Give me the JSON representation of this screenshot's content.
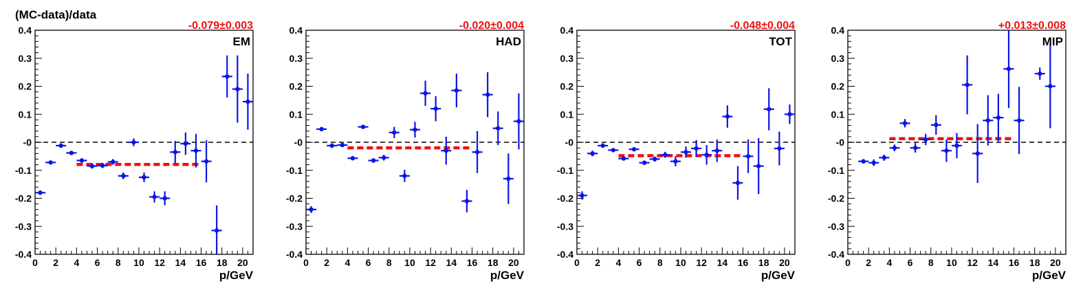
{
  "figure": {
    "ylabel": "(MC-data)/data",
    "xlabel": "p/GeV"
  },
  "colors": {
    "points": "#0a14e6",
    "fit": "#ee1111",
    "zero_line": "#000000",
    "frame": "#000000"
  },
  "chart_data": [
    {
      "type": "scatter",
      "panel_label": "EM",
      "fit_text": "-0.079±0.003",
      "xlim": [
        0,
        21
      ],
      "ylim": [
        -0.4,
        0.4
      ],
      "x_ticks": [
        "0",
        "2",
        "4",
        "6",
        "8",
        "10",
        "12",
        "14",
        "16",
        "18",
        "20"
      ],
      "y_ticks": [
        "0.4",
        "0.3",
        "0.2",
        "0.1",
        "-0",
        "-0.1",
        "-0.2",
        "-0.3",
        "-0.4"
      ],
      "reference_line": {
        "y": 0,
        "style": "dashed"
      },
      "fit": {
        "value": -0.079,
        "x_range": [
          4,
          16
        ],
        "style": "dashed"
      },
      "points": [
        {
          "x": 0.5,
          "y": -0.18,
          "yerr": 0.008
        },
        {
          "x": 1.5,
          "y": -0.072,
          "yerr": 0.006
        },
        {
          "x": 2.5,
          "y": -0.012,
          "yerr": 0.008
        },
        {
          "x": 3.5,
          "y": -0.038,
          "yerr": 0.006
        },
        {
          "x": 4.5,
          "y": -0.065,
          "yerr": 0.008
        },
        {
          "x": 5.5,
          "y": -0.085,
          "yerr": 0.009
        },
        {
          "x": 6.5,
          "y": -0.083,
          "yerr": 0.009
        },
        {
          "x": 7.5,
          "y": -0.07,
          "yerr": 0.01
        },
        {
          "x": 8.5,
          "y": -0.12,
          "yerr": 0.012
        },
        {
          "x": 9.5,
          "y": 0.0,
          "yerr": 0.014
        },
        {
          "x": 10.5,
          "y": -0.125,
          "yerr": 0.017
        },
        {
          "x": 11.5,
          "y": -0.195,
          "yerr": 0.02
        },
        {
          "x": 12.5,
          "y": -0.2,
          "yerr": 0.025
        },
        {
          "x": 13.5,
          "y": -0.035,
          "yerr": 0.04
        },
        {
          "x": 14.5,
          "y": -0.005,
          "yerr": 0.04
        },
        {
          "x": 15.5,
          "y": -0.03,
          "yerr": 0.06
        },
        {
          "x": 16.5,
          "y": -0.068,
          "yerr": 0.075
        },
        {
          "x": 17.5,
          "y": -0.315,
          "yerr": 0.09
        },
        {
          "x": 18.5,
          "y": 0.235,
          "yerr": 0.075
        },
        {
          "x": 19.5,
          "y": 0.19,
          "yerr": 0.12
        },
        {
          "x": 20.5,
          "y": 0.145,
          "yerr": 0.1
        }
      ]
    },
    {
      "type": "scatter",
      "panel_label": "HAD",
      "fit_text": "-0.020±0.004",
      "xlim": [
        0,
        21
      ],
      "ylim": [
        -0.4,
        0.4
      ],
      "x_ticks": [
        "0",
        "2",
        "4",
        "6",
        "8",
        "10",
        "12",
        "14",
        "16",
        "18",
        "20"
      ],
      "y_ticks": [
        "0.4",
        "0.3",
        "0.2",
        "0.1",
        "-0",
        "-0.1",
        "-0.2",
        "-0.3",
        "-0.4"
      ],
      "reference_line": {
        "y": 0,
        "style": "dashed"
      },
      "fit": {
        "value": -0.02,
        "x_range": [
          4,
          16
        ],
        "style": "dashed"
      },
      "points": [
        {
          "x": 0.5,
          "y": -0.24,
          "yerr": 0.012
        },
        {
          "x": 1.5,
          "y": 0.047,
          "yerr": 0.007
        },
        {
          "x": 2.5,
          "y": -0.012,
          "yerr": 0.008
        },
        {
          "x": 3.5,
          "y": -0.01,
          "yerr": 0.006
        },
        {
          "x": 4.5,
          "y": -0.057,
          "yerr": 0.007
        },
        {
          "x": 5.5,
          "y": 0.055,
          "yerr": 0.007
        },
        {
          "x": 6.5,
          "y": -0.065,
          "yerr": 0.008
        },
        {
          "x": 7.5,
          "y": -0.055,
          "yerr": 0.01
        },
        {
          "x": 8.5,
          "y": 0.035,
          "yerr": 0.02
        },
        {
          "x": 9.5,
          "y": -0.12,
          "yerr": 0.022
        },
        {
          "x": 10.5,
          "y": 0.045,
          "yerr": 0.028
        },
        {
          "x": 11.5,
          "y": 0.175,
          "yerr": 0.045
        },
        {
          "x": 12.5,
          "y": 0.12,
          "yerr": 0.045
        },
        {
          "x": 13.5,
          "y": -0.03,
          "yerr": 0.05
        },
        {
          "x": 14.5,
          "y": 0.185,
          "yerr": 0.06
        },
        {
          "x": 15.5,
          "y": -0.21,
          "yerr": 0.04
        },
        {
          "x": 16.5,
          "y": -0.035,
          "yerr": 0.075
        },
        {
          "x": 17.5,
          "y": 0.17,
          "yerr": 0.08
        },
        {
          "x": 18.5,
          "y": 0.05,
          "yerr": 0.06
        },
        {
          "x": 19.5,
          "y": -0.13,
          "yerr": 0.09
        },
        {
          "x": 20.5,
          "y": 0.075,
          "yerr": 0.1
        }
      ]
    },
    {
      "type": "scatter",
      "panel_label": "TOT",
      "fit_text": "-0.048±0.004",
      "xlim": [
        0,
        21
      ],
      "ylim": [
        -0.4,
        0.4
      ],
      "x_ticks": [
        "0",
        "2",
        "4",
        "6",
        "8",
        "10",
        "12",
        "14",
        "16",
        "18",
        "20"
      ],
      "y_ticks": [
        "0.4",
        "0.3",
        "0.2",
        "0.1",
        "-0",
        "-0.1",
        "-0.2",
        "-0.3",
        "-0.4"
      ],
      "reference_line": {
        "y": 0,
        "style": "dashed"
      },
      "fit": {
        "value": -0.048,
        "x_range": [
          4,
          16
        ],
        "style": "dashed"
      },
      "points": [
        {
          "x": 0.5,
          "y": -0.19,
          "yerr": 0.015
        },
        {
          "x": 1.5,
          "y": -0.04,
          "yerr": 0.01
        },
        {
          "x": 2.5,
          "y": -0.012,
          "yerr": 0.008
        },
        {
          "x": 3.5,
          "y": -0.028,
          "yerr": 0.006
        },
        {
          "x": 4.5,
          "y": -0.058,
          "yerr": 0.007
        },
        {
          "x": 5.5,
          "y": -0.025,
          "yerr": 0.007
        },
        {
          "x": 6.5,
          "y": -0.073,
          "yerr": 0.008
        },
        {
          "x": 7.5,
          "y": -0.06,
          "yerr": 0.009
        },
        {
          "x": 8.5,
          "y": -0.045,
          "yerr": 0.011
        },
        {
          "x": 9.5,
          "y": -0.068,
          "yerr": 0.018
        },
        {
          "x": 10.5,
          "y": -0.035,
          "yerr": 0.02
        },
        {
          "x": 11.5,
          "y": -0.022,
          "yerr": 0.03
        },
        {
          "x": 12.5,
          "y": -0.045,
          "yerr": 0.035
        },
        {
          "x": 13.5,
          "y": -0.03,
          "yerr": 0.04
        },
        {
          "x": 14.5,
          "y": 0.092,
          "yerr": 0.04
        },
        {
          "x": 15.5,
          "y": -0.145,
          "yerr": 0.06
        },
        {
          "x": 16.5,
          "y": -0.05,
          "yerr": 0.06
        },
        {
          "x": 17.5,
          "y": -0.085,
          "yerr": 0.1
        },
        {
          "x": 18.5,
          "y": 0.118,
          "yerr": 0.075
        },
        {
          "x": 19.5,
          "y": -0.022,
          "yerr": 0.06
        },
        {
          "x": 20.5,
          "y": 0.1,
          "yerr": 0.035
        }
      ]
    },
    {
      "type": "scatter",
      "panel_label": "MIP",
      "fit_text": "+0.013±0.008",
      "xlim": [
        0,
        21
      ],
      "ylim": [
        -0.4,
        0.4
      ],
      "x_ticks": [
        "0",
        "2",
        "4",
        "6",
        "8",
        "10",
        "12",
        "14",
        "16",
        "18",
        "20"
      ],
      "y_ticks": [
        "0.4",
        "0.3",
        "0.2",
        "0.1",
        "-0",
        "-0.1",
        "-0.2",
        "-0.3",
        "-0.4"
      ],
      "reference_line": {
        "y": 0,
        "style": "dashed"
      },
      "fit": {
        "value": 0.013,
        "x_range": [
          4,
          16
        ],
        "style": "dashed"
      },
      "points": [
        {
          "x": 1.5,
          "y": -0.068,
          "yerr": 0.008
        },
        {
          "x": 2.5,
          "y": -0.073,
          "yerr": 0.012
        },
        {
          "x": 3.5,
          "y": -0.055,
          "yerr": 0.011
        },
        {
          "x": 4.5,
          "y": -0.02,
          "yerr": 0.012
        },
        {
          "x": 5.5,
          "y": 0.068,
          "yerr": 0.015
        },
        {
          "x": 6.5,
          "y": -0.02,
          "yerr": 0.017
        },
        {
          "x": 7.5,
          "y": 0.01,
          "yerr": 0.02
        },
        {
          "x": 8.5,
          "y": 0.062,
          "yerr": 0.035
        },
        {
          "x": 9.5,
          "y": -0.03,
          "yerr": 0.04
        },
        {
          "x": 10.5,
          "y": -0.012,
          "yerr": 0.045
        },
        {
          "x": 11.5,
          "y": 0.205,
          "yerr": 0.105
        },
        {
          "x": 12.5,
          "y": -0.04,
          "yerr": 0.105
        },
        {
          "x": 13.5,
          "y": 0.078,
          "yerr": 0.09
        },
        {
          "x": 14.5,
          "y": 0.088,
          "yerr": 0.085
        },
        {
          "x": 15.5,
          "y": 0.262,
          "yerr": 0.14
        },
        {
          "x": 16.5,
          "y": 0.078,
          "yerr": 0.12
        },
        {
          "x": 18.5,
          "y": 0.245,
          "yerr": 0.022
        },
        {
          "x": 19.5,
          "y": 0.2,
          "yerr": 0.15
        }
      ]
    }
  ]
}
